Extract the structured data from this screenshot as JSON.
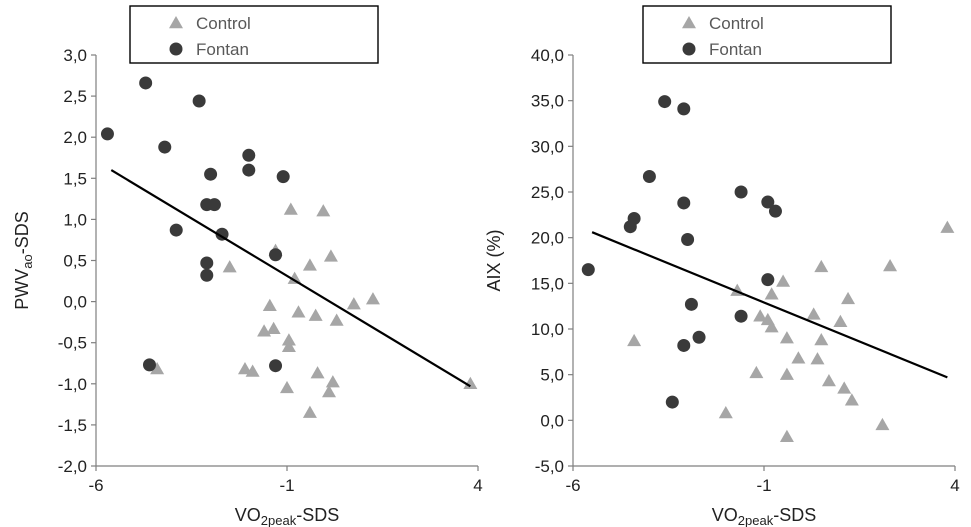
{
  "chart_data": [
    {
      "type": "scatter",
      "xlabel": "VO",
      "xlabel_sub": "2peak",
      "xlabel_suffix": "-SDS",
      "ylabel": "PWV",
      "ylabel_sub": "ao",
      "ylabel_suffix": "-SDS",
      "xlim": [
        -6,
        4
      ],
      "ylim": [
        -2,
        3
      ],
      "xticks": [
        -6,
        -1,
        4
      ],
      "xtick_labels": [
        "-6",
        "-1",
        "4"
      ],
      "yticks": [
        -2,
        -1.5,
        -1,
        -0.5,
        0,
        0.5,
        1,
        1.5,
        2,
        2.5,
        3
      ],
      "ytick_labels": [
        "-2,0",
        "-1,5",
        "-1,0",
        "-0,5",
        "0,0",
        "0,5",
        "1,0",
        "1,5",
        "2,0",
        "2,5",
        "3,0"
      ],
      "legend_position": "top-center",
      "series": [
        {
          "name": "Control",
          "marker": "triangle",
          "color": "#a6a6a6",
          "points": [
            [
              -4.4,
              -0.82
            ],
            [
              -2.5,
              0.42
            ],
            [
              -2.1,
              -0.82
            ],
            [
              -1.9,
              -0.85
            ],
            [
              -1.6,
              -0.36
            ],
            [
              -1.45,
              -0.05
            ],
            [
              -1.35,
              -0.33
            ],
            [
              -1.3,
              0.62
            ],
            [
              -1.0,
              -1.05
            ],
            [
              -0.95,
              -0.55
            ],
            [
              -0.95,
              -0.47
            ],
            [
              -0.9,
              1.12
            ],
            [
              -0.8,
              0.28
            ],
            [
              -0.7,
              -0.13
            ],
            [
              -0.4,
              0.44
            ],
            [
              -0.2,
              -0.87
            ],
            [
              -0.25,
              -0.17
            ],
            [
              -0.4,
              -1.35
            ],
            [
              -0.05,
              1.1
            ],
            [
              0.1,
              -1.1
            ],
            [
              0.15,
              0.55
            ],
            [
              0.2,
              -0.98
            ],
            [
              0.3,
              -0.23
            ],
            [
              0.75,
              -0.03
            ],
            [
              1.25,
              0.03
            ],
            [
              3.8,
              -1.0
            ]
          ]
        },
        {
          "name": "Fontan",
          "marker": "circle",
          "color": "#3a3a3a",
          "points": [
            [
              -5.7,
              2.04
            ],
            [
              -4.7,
              2.66
            ],
            [
              -4.6,
              -0.77
            ],
            [
              -4.2,
              1.88
            ],
            [
              -3.9,
              0.87
            ],
            [
              -3.3,
              2.44
            ],
            [
              -3.1,
              1.18
            ],
            [
              -3.1,
              0.47
            ],
            [
              -3.1,
              0.32
            ],
            [
              -3.0,
              1.55
            ],
            [
              -2.9,
              1.18
            ],
            [
              -2.7,
              0.82
            ],
            [
              -2.0,
              1.78
            ],
            [
              -2.0,
              1.6
            ],
            [
              -1.3,
              0.57
            ],
            [
              -1.3,
              -0.78
            ],
            [
              -1.1,
              1.52
            ]
          ]
        }
      ],
      "trendline": {
        "x": [
          -5.6,
          3.8
        ],
        "y": [
          1.6,
          -1.03
        ]
      }
    },
    {
      "type": "scatter",
      "xlabel": "VO",
      "xlabel_sub": "2peak",
      "xlabel_suffix": "-SDS",
      "ylabel": "AIX (%)",
      "ylabel_sub": "",
      "ylabel_suffix": "",
      "xlim": [
        -6,
        4
      ],
      "ylim": [
        -5,
        40
      ],
      "xticks": [
        -6,
        -1,
        4
      ],
      "xtick_labels": [
        "-6",
        "-1",
        "4"
      ],
      "yticks": [
        -5,
        0,
        5,
        10,
        15,
        20,
        25,
        30,
        35,
        40
      ],
      "ytick_labels": [
        "-5,0",
        "0,0",
        "5,0",
        "10,0",
        "15,0",
        "20,0",
        "25,0",
        "30,0",
        "35,0",
        "40,0"
      ],
      "legend_position": "top-center",
      "series": [
        {
          "name": "Control",
          "marker": "triangle",
          "color": "#a6a6a6",
          "points": [
            [
              -4.4,
              8.7
            ],
            [
              -2.0,
              0.8
            ],
            [
              -1.7,
              14.2
            ],
            [
              -1.2,
              5.2
            ],
            [
              -1.1,
              11.4
            ],
            [
              -0.9,
              11.0
            ],
            [
              -0.8,
              10.2
            ],
            [
              -0.8,
              13.8
            ],
            [
              -0.5,
              15.2
            ],
            [
              -0.4,
              9.0
            ],
            [
              -0.4,
              5.0
            ],
            [
              -0.4,
              -1.8
            ],
            [
              -0.1,
              6.8
            ],
            [
              0.3,
              11.6
            ],
            [
              0.4,
              6.7
            ],
            [
              0.5,
              8.8
            ],
            [
              0.5,
              16.8
            ],
            [
              0.7,
              4.3
            ],
            [
              1.0,
              10.8
            ],
            [
              1.1,
              3.5
            ],
            [
              1.2,
              13.3
            ],
            [
              1.3,
              2.2
            ],
            [
              2.1,
              -0.5
            ],
            [
              2.3,
              16.9
            ],
            [
              3.8,
              21.1
            ]
          ]
        },
        {
          "name": "Fontan",
          "marker": "circle",
          "color": "#3a3a3a",
          "points": [
            [
              -5.6,
              16.5
            ],
            [
              -4.5,
              21.2
            ],
            [
              -4.4,
              22.1
            ],
            [
              -4.0,
              26.7
            ],
            [
              -3.6,
              34.9
            ],
            [
              -3.4,
              2.0
            ],
            [
              -3.1,
              34.1
            ],
            [
              -3.1,
              23.8
            ],
            [
              -3.1,
              8.2
            ],
            [
              -3.0,
              19.8
            ],
            [
              -2.9,
              12.7
            ],
            [
              -2.7,
              9.1
            ],
            [
              -1.6,
              25.0
            ],
            [
              -1.6,
              11.4
            ],
            [
              -0.9,
              23.9
            ],
            [
              -0.9,
              15.4
            ],
            [
              -0.7,
              22.9
            ]
          ]
        }
      ],
      "trendline": {
        "x": [
          -5.5,
          3.8
        ],
        "y": [
          20.6,
          4.7
        ]
      }
    }
  ]
}
